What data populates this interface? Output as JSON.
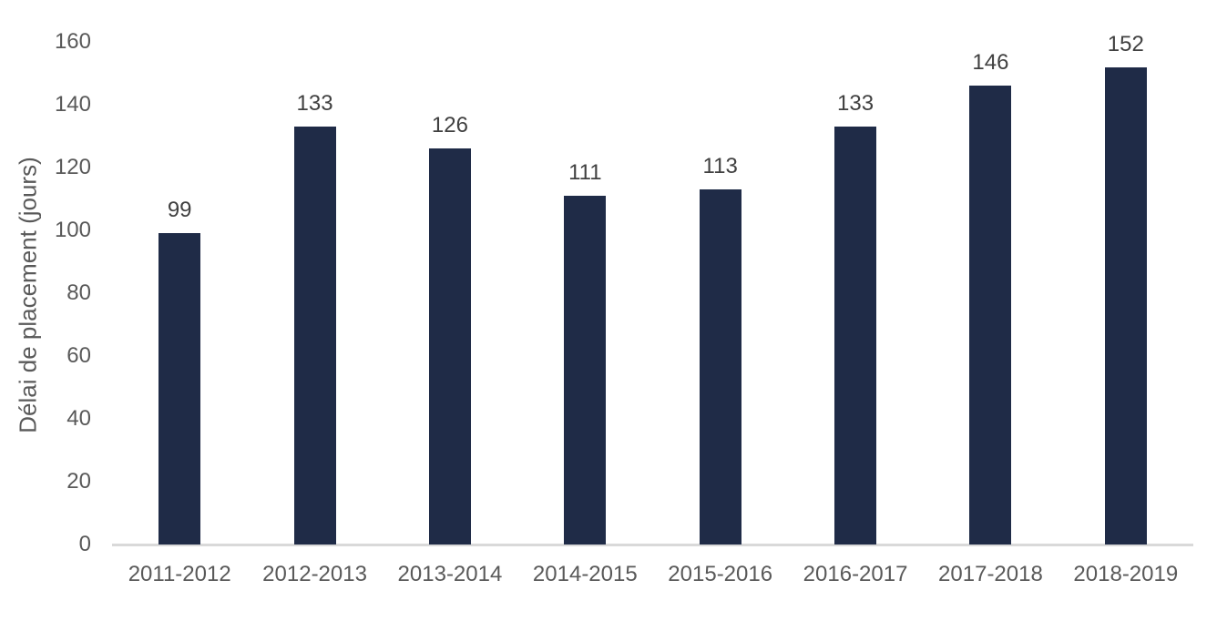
{
  "chart_data": {
    "type": "bar",
    "title": "",
    "categories": [
      "2011-2012",
      "2012-2013",
      "2013-2014",
      "2014-2015",
      "2015-2016",
      "2016-2017",
      "2017-2018",
      "2018-2019"
    ],
    "values": [
      99,
      133,
      126,
      111,
      113,
      133,
      146,
      152
    ],
    "xlabel": "",
    "ylabel": "Délai de placement (jours)",
    "ylim": [
      0,
      160
    ],
    "yticks": [
      0,
      20,
      40,
      60,
      80,
      100,
      120,
      140,
      160
    ],
    "grid": false,
    "legend": false,
    "data_labels_position": "outside-end",
    "colors": {
      "bar_fill": "#1F2B47",
      "axis_line": "#D9D9D9",
      "tick_label": "#595959",
      "data_label": "#404040",
      "background": "#FFFFFF"
    }
  }
}
